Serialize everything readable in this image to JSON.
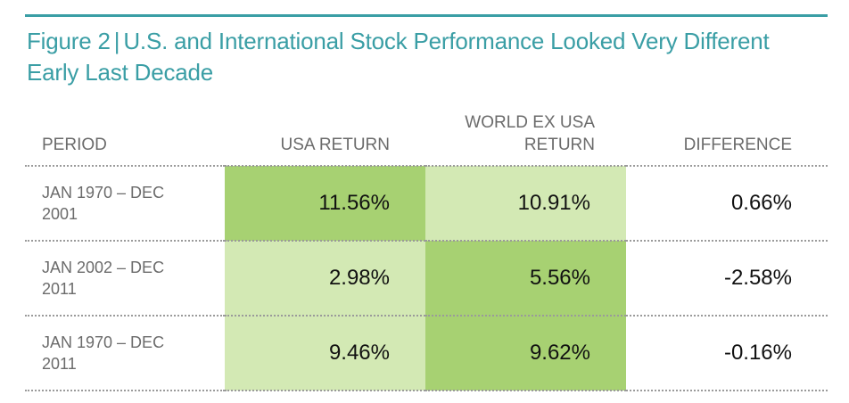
{
  "title": {
    "figure": "Figure 2",
    "separator": "|",
    "text": "U.S. and International Stock Performance Looked Very Different Early Last Decade"
  },
  "colors": {
    "accent": "#3a9ea5",
    "higher_return_fill": "#a7d172",
    "lower_return_fill": "#d3e9b4"
  },
  "chart_data": {
    "type": "table",
    "columns": [
      "PERIOD",
      "USA RETURN",
      "WORLD EX USA RETURN",
      "DIFFERENCE"
    ],
    "rows": [
      {
        "period": "JAN 1970 – DEC 2001",
        "usa": "11.56%",
        "world": "10.91%",
        "difference": "0.66%",
        "usa_shade": "dark",
        "world_shade": "light"
      },
      {
        "period": "JAN 2002 – DEC 2011",
        "usa": "2.98%",
        "world": "5.56%",
        "difference": "-2.58%",
        "usa_shade": "light",
        "world_shade": "dark"
      },
      {
        "period": "JAN 1970 – DEC 2011",
        "usa": "9.46%",
        "world": "9.62%",
        "difference": "-0.16%",
        "usa_shade": "light",
        "world_shade": "dark"
      }
    ]
  }
}
